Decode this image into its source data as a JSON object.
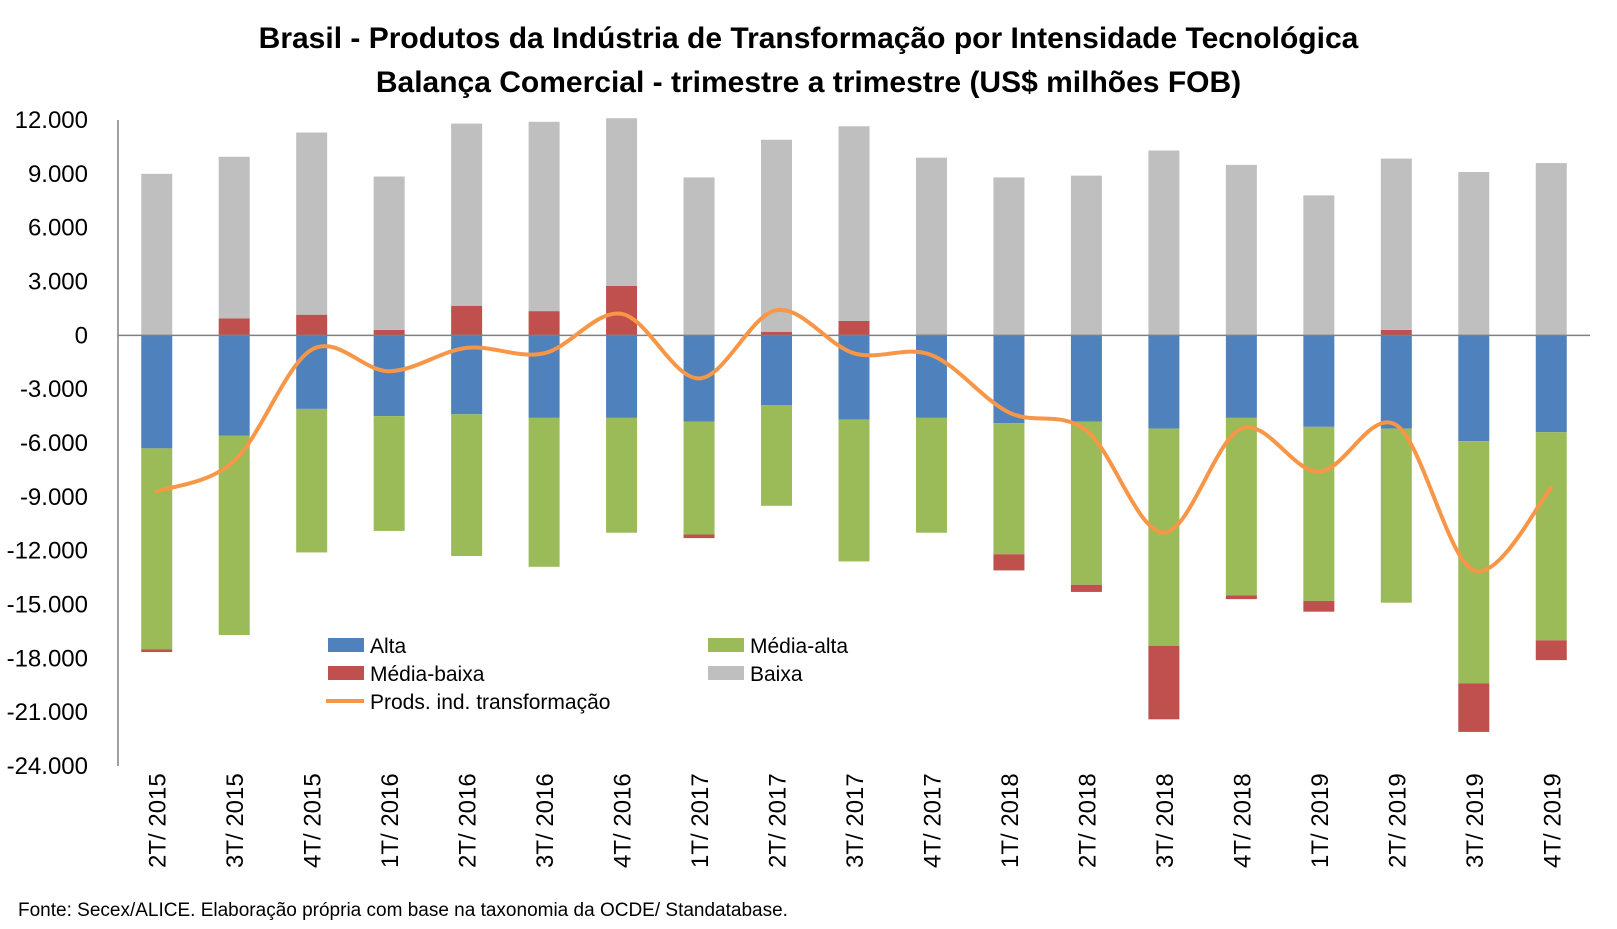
{
  "title": "Brasil - Produtos da Indústria de Transformação por Intensidade Tecnológica",
  "subtitle": "Balança Comercial - trimestre a trimestre (US$ milhões FOB)",
  "source": "Fonte: Secex/ALICE. Elaboração própria com base na taxonomia da OCDE/ Standatabase.",
  "colors": {
    "Alta": "#4f81bd",
    "Média-alta": "#9bbb59",
    "Média-baixa": "#c0504d",
    "Baixa": "#bfbfbf",
    "line": "#f79646",
    "axis": "#808080"
  },
  "chart_data": {
    "type": "bar",
    "stacked": true,
    "title": "Brasil - Produtos da Indústria de Transformação por Intensidade Tecnológica",
    "subtitle": "Balança Comercial - trimestre a trimestre (US$ milhões FOB)",
    "ylim": [
      -24000,
      12000
    ],
    "yticks": [
      12000,
      9000,
      6000,
      3000,
      0,
      -3000,
      -6000,
      -9000,
      -12000,
      -15000,
      -18000,
      -21000,
      -24000
    ],
    "ytick_labels": [
      "12.000",
      "9.000",
      "6.000",
      "3.000",
      "0",
      "-3.000",
      "-6.000",
      "-9.000",
      "-12.000",
      "-15.000",
      "-18.000",
      "-21.000",
      "-24.000"
    ],
    "legend_position": "bottom-left inside",
    "categories": [
      "2T/ 2015",
      "3T/ 2015",
      "4T/ 2015",
      "1T/ 2016",
      "2T/ 2016",
      "3T/ 2016",
      "4T/ 2016",
      "1T/ 2017",
      "2T/ 2017",
      "3T/ 2017",
      "4T/ 2017",
      "1T/ 2018",
      "2T/ 2018",
      "3T/ 2018",
      "4T/ 2018",
      "1T/ 2019",
      "2T/ 2019",
      "3T/ 2019",
      "4T/ 2019"
    ],
    "series": [
      {
        "name": "Alta",
        "kind": "bar",
        "values": [
          -6300,
          -5600,
          -4100,
          -4500,
          -4400,
          -4600,
          -4600,
          -4800,
          -3900,
          -4700,
          -4600,
          -4900,
          -4800,
          -5200,
          -4600,
          -5100,
          -5200,
          -5900,
          -5400
        ]
      },
      {
        "name": "Média-alta",
        "kind": "bar",
        "values": [
          -11200,
          -11100,
          -8000,
          -6400,
          -7900,
          -8300,
          -6400,
          -6300,
          -5600,
          -7900,
          -6400,
          -7300,
          -9100,
          -12100,
          -9900,
          -9700,
          -9700,
          -13500,
          -11600
        ]
      },
      {
        "name": "Média-baixa",
        "kind": "bar",
        "values": [
          -150,
          950,
          1150,
          300,
          1650,
          1350,
          2750,
          -200,
          200,
          800,
          50,
          -900,
          -400,
          -4100,
          -200,
          -600,
          300,
          -2700,
          -1100
        ]
      },
      {
        "name": "Baixa",
        "kind": "bar",
        "values": [
          9000,
          9000,
          10150,
          8550,
          10150,
          10550,
          9350,
          8800,
          10700,
          10850,
          9850,
          8800,
          8900,
          10300,
          9500,
          7800,
          9550,
          9100,
          9600
        ]
      },
      {
        "name": "Prods. ind. transformação",
        "kind": "line",
        "values": [
          -8700,
          -7000,
          -800,
          -2000,
          -700,
          -1000,
          1200,
          -2400,
          1400,
          -1000,
          -1100,
          -4300,
          -5300,
          -11000,
          -5200,
          -7600,
          -5000,
          -13100,
          -8500
        ]
      }
    ]
  }
}
